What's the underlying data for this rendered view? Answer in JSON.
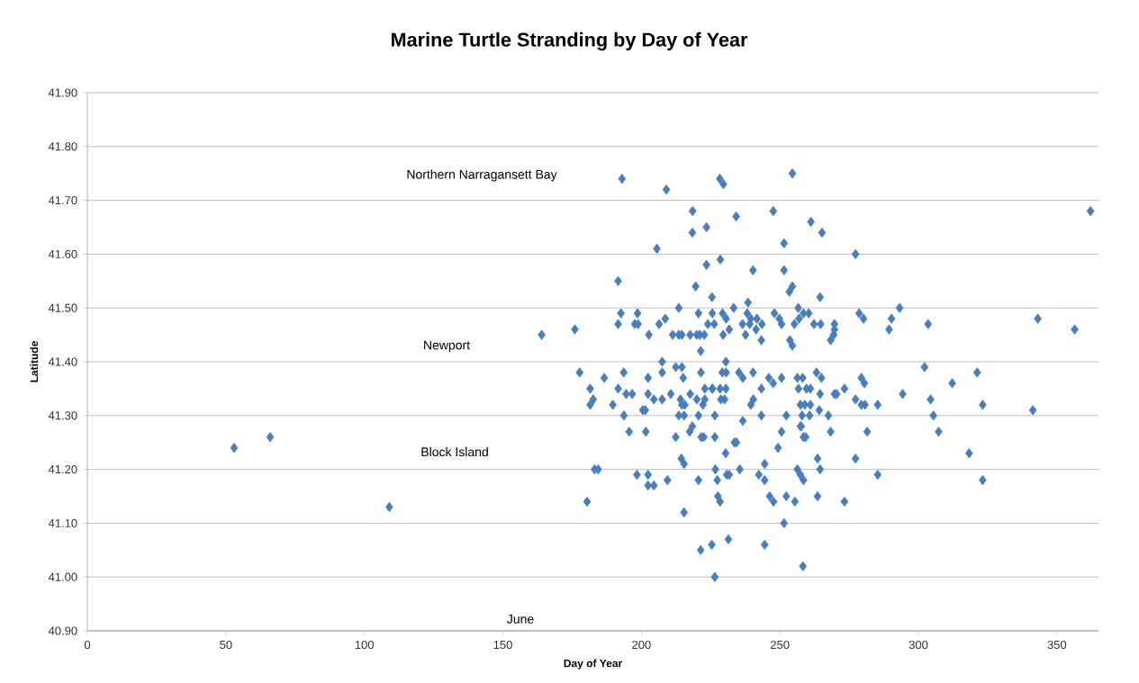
{
  "chart_data": {
    "type": "scatter",
    "title": "Marine Turtle Stranding by Day of Year",
    "xlabel": "Day of Year",
    "ylabel": "Latitude",
    "x": [
      53,
      66,
      109,
      164,
      176,
      193,
      209,
      228.3,
      229.6,
      218.5,
      223.5,
      218.4,
      234.2,
      247.6,
      205.6,
      228.5,
      223.5,
      240.3,
      191.6,
      219.6,
      225.5,
      238.5,
      233.3,
      213.5,
      192.6,
      198.6,
      208.6,
      220.6,
      225.6,
      229.3,
      230.6,
      238.2,
      239.5,
      241.7,
      243.5,
      248,
      191.6,
      197.6,
      198.8,
      206.4,
      202.7,
      211.3,
      213.5,
      214.6,
      217.6,
      220,
      221.1,
      222.7,
      224,
      226.3,
      229.5,
      231.7,
      236.5,
      237.6,
      239.1,
      241.4,
      243.3,
      221.4,
      207.5,
      230.5,
      177.7,
      186.6,
      193.6,
      207.5,
      212.4,
      214.6,
      215.1,
      221.5,
      229.2,
      230.6,
      235.2,
      236.6,
      240.3,
      246,
      181.5,
      191.6,
      202.4,
      222.9,
      225.6,
      230.5,
      243.3,
      181.5,
      182.6,
      189.7,
      193.7,
      194.5,
      196.7,
      202.4,
      204.5,
      207.5,
      210.6,
      200.5,
      201.4,
      214.1,
      214.6,
      215.7,
      217.6,
      213.5,
      215.4,
      220,
      222.2,
      222.9,
      225.6,
      228.4,
      228.7,
      230,
      220.6,
      226.5,
      236.6,
      239.5,
      240.4,
      243.3,
      195.6,
      201.6,
      212.4,
      218.4,
      217.4,
      221.6,
      222.5,
      226.5,
      233.6,
      234.3,
      230.4,
      183.1,
      184.4,
      198.4,
      202.4,
      204.5,
      202.4,
      209.4,
      214.4,
      215.4,
      220.6,
      226.7,
      227.4,
      230.8,
      231.7,
      235.5,
      227.6,
      228.4,
      242.4,
      244.5,
      244.5,
      246.3,
      247.7,
      180.4,
      215.4,
      231.4,
      225.4,
      221.4,
      244.5,
      226.5,
      254.5,
      261.2,
      265.2,
      251.5,
      277.3,
      251.5,
      253.4,
      254.5,
      264.5,
      256.6,
      293.2,
      249.8,
      250.6,
      255.2,
      256.9,
      258.5,
      260.4,
      262.3,
      264.7,
      269.7,
      269.7,
      269.4,
      268.3,
      253.6,
      254.5,
      278.6,
      280.2,
      290.3,
      289.4,
      303.5,
      302.2,
      312.2,
      321.2,
      247.6,
      250.6,
      256.3,
      258.2,
      263.2,
      265,
      279.4,
      280.5,
      256.7,
      259.6,
      261,
      264.5,
      269.7,
      270.5,
      273.3,
      277.3,
      279.4,
      280.7,
      285.3,
      294.3,
      304.4,
      323.2,
      257.4,
      259,
      261,
      258,
      260.7,
      252.3,
      264.2,
      267.5,
      305.4,
      257.4,
      257.7,
      250.6,
      258.5,
      259.3,
      268.3,
      281.5,
      307.3,
      249.3,
      263.6,
      264.5,
      277.3,
      318.3,
      256.3,
      257.4,
      258.5,
      285.3,
      323.2,
      252.3,
      255.4,
      263.6,
      273.3,
      251.5,
      258.3,
      362.1,
      343.1,
      356.4,
      341.3
    ],
    "values": [
      41.24,
      41.26,
      41.13,
      41.45,
      41.46,
      41.74,
      41.72,
      41.74,
      41.73,
      41.68,
      41.65,
      41.64,
      41.67,
      41.68,
      41.61,
      41.59,
      41.58,
      41.57,
      41.55,
      41.54,
      41.52,
      41.51,
      41.5,
      41.5,
      41.49,
      41.49,
      41.48,
      41.49,
      41.49,
      41.49,
      41.48,
      41.49,
      41.48,
      41.48,
      41.47,
      41.49,
      41.47,
      41.47,
      41.47,
      41.47,
      41.45,
      41.45,
      41.45,
      41.45,
      41.45,
      41.45,
      41.45,
      41.45,
      41.47,
      41.47,
      41.45,
      41.46,
      41.47,
      41.45,
      41.47,
      41.46,
      41.44,
      41.42,
      41.4,
      41.4,
      41.38,
      41.37,
      41.38,
      41.38,
      41.39,
      41.39,
      41.37,
      41.38,
      41.38,
      41.38,
      41.38,
      41.37,
      41.38,
      41.37,
      41.35,
      41.35,
      41.37,
      41.35,
      41.35,
      41.35,
      41.35,
      41.32,
      41.33,
      41.32,
      41.3,
      41.34,
      41.34,
      41.34,
      41.33,
      41.33,
      41.34,
      41.31,
      41.31,
      41.33,
      41.32,
      41.32,
      41.34,
      41.3,
      41.3,
      41.33,
      41.32,
      41.33,
      41.35,
      41.35,
      41.33,
      41.33,
      41.3,
      41.3,
      41.29,
      41.32,
      41.33,
      41.3,
      41.27,
      41.27,
      41.26,
      41.28,
      41.27,
      41.26,
      41.26,
      41.26,
      41.25,
      41.25,
      41.23,
      41.2,
      41.2,
      41.19,
      41.19,
      41.17,
      41.17,
      41.18,
      41.22,
      41.21,
      41.18,
      41.2,
      41.18,
      41.19,
      41.19,
      41.2,
      41.15,
      41.14,
      41.19,
      41.18,
      41.21,
      41.15,
      41.14,
      41.14,
      41.12,
      41.07,
      41.06,
      41.05,
      41.06,
      41,
      41.75,
      41.66,
      41.64,
      41.62,
      41.6,
      41.57,
      41.53,
      41.54,
      41.52,
      41.5,
      41.5,
      41.48,
      41.47,
      41.47,
      41.48,
      41.49,
      41.49,
      41.47,
      41.47,
      41.47,
      41.46,
      41.45,
      41.44,
      41.44,
      41.43,
      41.49,
      41.48,
      41.48,
      41.46,
      41.47,
      41.39,
      41.36,
      41.38,
      41.36,
      41.37,
      41.37,
      41.37,
      41.38,
      41.37,
      41.37,
      41.36,
      41.35,
      41.35,
      41.35,
      41.34,
      41.34,
      41.34,
      41.35,
      41.33,
      41.32,
      41.32,
      41.32,
      41.34,
      41.33,
      41.32,
      41.32,
      41.32,
      41.32,
      41.3,
      41.3,
      41.3,
      41.31,
      41.3,
      41.3,
      41.28,
      41.28,
      41.27,
      41.26,
      41.26,
      41.27,
      41.27,
      41.27,
      41.24,
      41.22,
      41.2,
      41.22,
      41.23,
      41.2,
      41.19,
      41.18,
      41.19,
      41.18,
      41.15,
      41.14,
      41.15,
      41.14,
      41.1,
      41.02,
      41.68,
      41.48,
      41.46,
      41.31
    ],
    "color": "#4a7ebb",
    "marker": "diamond",
    "grid": "y",
    "xlim": [
      0,
      365
    ],
    "ylim": [
      40.9,
      41.9
    ],
    "xticks": [
      0,
      50,
      100,
      150,
      200,
      250,
      300,
      350
    ],
    "yticks": [
      {
        "value": 40.9,
        "label": "40.90"
      },
      {
        "value": 41.0,
        "label": "41.00"
      },
      {
        "value": 41.1,
        "label": "41.10"
      },
      {
        "value": 41.2,
        "label": "41.20"
      },
      {
        "value": 41.3,
        "label": "41.30"
      },
      {
        "value": 41.4,
        "label": "41.40"
      },
      {
        "value": 41.5,
        "label": "41.50"
      },
      {
        "value": 41.6,
        "label": "41.60"
      },
      {
        "value": 41.7,
        "label": "41.70"
      },
      {
        "value": 41.8,
        "label": "41.80"
      },
      {
        "value": 41.9,
        "label": "41.90"
      }
    ],
    "annotations": [
      "Northern Narragansett Bay",
      "Newport",
      "Block Island",
      "June"
    ]
  }
}
